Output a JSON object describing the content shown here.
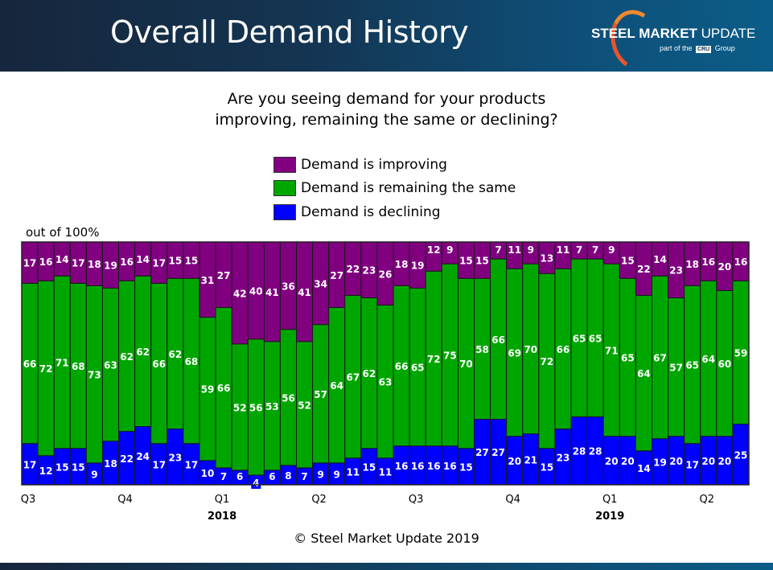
{
  "header": {
    "title": "Overall Demand History",
    "logo_bold": "STEEL",
    "logo_rest": " MARKET ",
    "logo_light": "UPDATE",
    "logo_sub_pre": "part of the",
    "logo_cru": "CRU",
    "logo_sub_post": "Group"
  },
  "question_line1": "Are you seeing demand for your products",
  "question_line2": "improving, remaining the same or declining?",
  "y_note": "out of 100%",
  "copyright": "© Steel Market Update 2019",
  "chart_data": {
    "type": "bar",
    "stacked": true,
    "title": "Overall Demand History",
    "subtitle": "Are you seeing demand for your products improving, remaining the same or declining?",
    "ylabel": "out of 100%",
    "ylim": [
      0,
      100
    ],
    "legend_position": "top-center",
    "x_quarter_labels": [
      {
        "index": 0,
        "label": "Q3"
      },
      {
        "index": 6,
        "label": "Q4"
      },
      {
        "index": 12,
        "label": "Q1",
        "year": "2018"
      },
      {
        "index": 18,
        "label": "Q2"
      },
      {
        "index": 24,
        "label": "Q3"
      },
      {
        "index": 30,
        "label": "Q4"
      },
      {
        "index": 36,
        "label": "Q1",
        "year": "2019"
      },
      {
        "index": 42,
        "label": "Q2"
      }
    ],
    "series": [
      {
        "name": "Demand is declining",
        "color": "#0000ff",
        "values": [
          17,
          12,
          15,
          15,
          9,
          18,
          22,
          24,
          17,
          23,
          17,
          10,
          7,
          6,
          4,
          6,
          8,
          7,
          9,
          9,
          11,
          15,
          11,
          16,
          16,
          16,
          16,
          15,
          27,
          27,
          20,
          21,
          15,
          23,
          28,
          28,
          20,
          20,
          14,
          19,
          20,
          17,
          20,
          20,
          25
        ]
      },
      {
        "name": "Demand is remaining the same",
        "color": "#00a600",
        "values": [
          66,
          72,
          71,
          68,
          73,
          63,
          62,
          62,
          66,
          62,
          68,
          59,
          66,
          52,
          56,
          53,
          56,
          52,
          57,
          64,
          67,
          62,
          63,
          66,
          65,
          72,
          75,
          70,
          58,
          66,
          69,
          70,
          72,
          66,
          65,
          65,
          71,
          65,
          64,
          67,
          57,
          65,
          64,
          60,
          59
        ]
      },
      {
        "name": "Demand is improving",
        "color": "#800080",
        "values": [
          17,
          16,
          14,
          17,
          18,
          19,
          16,
          14,
          17,
          15,
          15,
          31,
          27,
          42,
          40,
          41,
          36,
          41,
          34,
          27,
          22,
          23,
          26,
          18,
          19,
          12,
          9,
          15,
          15,
          7,
          11,
          9,
          13,
          11,
          7,
          7,
          9,
          15,
          22,
          14,
          23,
          18,
          16,
          20,
          16
        ]
      }
    ]
  }
}
